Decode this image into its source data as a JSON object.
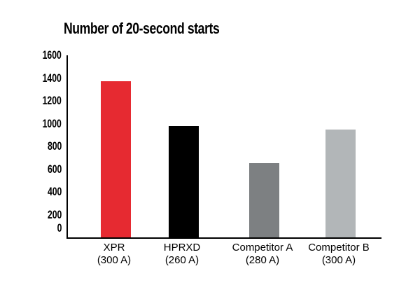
{
  "title": "Number of 20-second starts",
  "chart_data": {
    "type": "bar",
    "title": "Number of 20-second starts",
    "categories": [
      "XPR",
      "HPRXD",
      "Competitor A",
      "Competitor B"
    ],
    "category_sublabels": [
      "(300 A)",
      "(260 A)",
      "(280 A)",
      "(300 A)"
    ],
    "values": [
      1370,
      980,
      650,
      950
    ],
    "bar_colors": [
      "#E62A31",
      "#000000",
      "#7D8082",
      "#B2B6B8"
    ],
    "xlabel": "",
    "ylabel": "",
    "ylim": [
      0,
      1600
    ],
    "yticks": [
      0,
      200,
      400,
      600,
      800,
      1000,
      1200,
      1400,
      1600
    ],
    "grid": false,
    "legend_position": "none",
    "axis_color": "#000000",
    "background_color": "#FFFFFF"
  }
}
